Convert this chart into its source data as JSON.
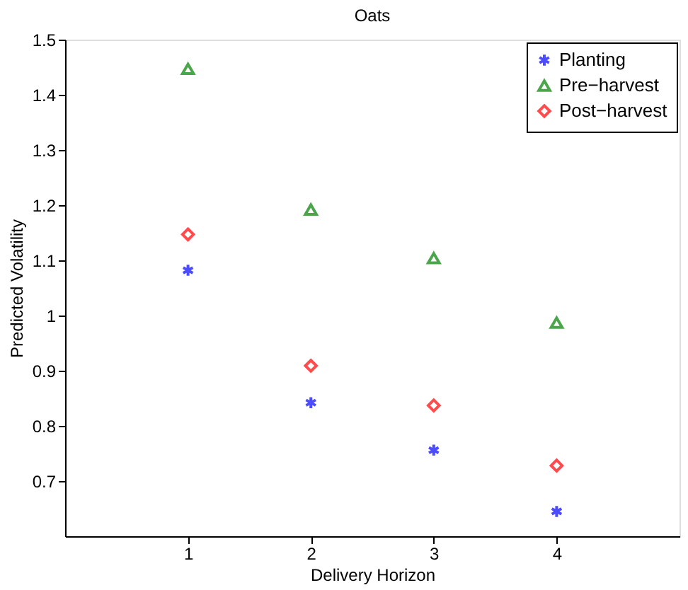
{
  "chart_data": {
    "type": "scatter",
    "title": "Oats",
    "xlabel": "Delivery Horizon",
    "ylabel": "Predicted Volatility",
    "x": [
      1,
      2,
      3,
      4
    ],
    "series": [
      {
        "name": "Planting",
        "color": "#0000ff",
        "marker": "cross",
        "values": [
          1.082,
          0.842,
          0.756,
          0.645
        ]
      },
      {
        "name": "Pre−harvest",
        "color": "#008000",
        "marker": "triangle",
        "values": [
          1.447,
          1.192,
          1.104,
          0.987
        ]
      },
      {
        "name": "Post−harvest",
        "color": "#ff0000",
        "marker": "diamond",
        "values": [
          1.147,
          0.909,
          0.837,
          0.728
        ]
      }
    ],
    "xlim": [
      0,
      5
    ],
    "xticks": [
      1,
      2,
      3,
      4
    ],
    "ylim": [
      0.6,
      1.5
    ],
    "yticks": [
      0.7,
      0.8,
      0.9,
      1,
      1.1,
      1.2,
      1.3,
      1.4,
      1.5
    ],
    "grid": false,
    "legend": "top right"
  }
}
